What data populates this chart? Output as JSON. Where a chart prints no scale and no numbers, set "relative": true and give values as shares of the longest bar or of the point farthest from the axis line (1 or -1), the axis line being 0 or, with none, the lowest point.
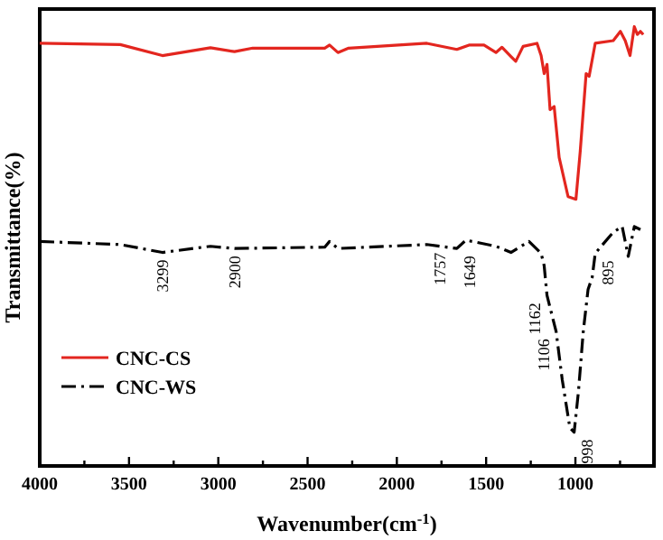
{
  "chart_data": {
    "type": "line",
    "relative": true,
    "xlabel": "Wavenumber(cm$^{-1}$)",
    "ylabel": "Transmittance(%)",
    "xlim": [
      4000,
      560
    ],
    "xticks": [
      4000,
      {
        "value": 3750,
        "label": null
      },
      3500,
      {
        "value": 3250,
        "label": null
      },
      3000,
      {
        "value": 2750,
        "label": null
      },
      2500,
      {
        "value": 2250,
        "label": null
      },
      2000,
      {
        "value": 1750,
        "label": null
      },
      1500,
      {
        "value": 1250,
        "label": null
      },
      1000,
      {
        "value": 750,
        "label": null
      }
    ],
    "legend": "bottom left",
    "grid": false,
    "series": [
      {
        "name": "CNC-CS",
        "color": "#e3261f",
        "line_style": "solid",
        "x": [
          4000,
          3549,
          3313,
          3044,
          2909,
          2807,
          2404,
          2377,
          2330,
          2270,
          1832,
          1664,
          1596,
          1512,
          1445,
          1411,
          1361,
          1334,
          1293,
          1215,
          1192,
          1175,
          1159,
          1142,
          1119,
          1091,
          1041,
          997,
          973,
          940,
          923,
          889,
          788,
          748,
          721,
          694,
          670,
          653,
          636,
          620
        ],
        "values": [
          0.962,
          0.959,
          0.934,
          0.952,
          0.943,
          0.951,
          0.951,
          0.958,
          0.941,
          0.951,
          0.962,
          0.948,
          0.958,
          0.958,
          0.941,
          0.953,
          0.932,
          0.921,
          0.955,
          0.962,
          0.934,
          0.893,
          0.914,
          0.811,
          0.818,
          0.702,
          0.613,
          0.607,
          0.716,
          0.893,
          0.887,
          0.962,
          0.968,
          0.989,
          0.968,
          0.934,
          1.0,
          0.982,
          0.989,
          0.982
        ]
      },
      {
        "name": "CNC-WS",
        "color": "#000000",
        "line_style": "dashdot",
        "x": [
          4000,
          3549,
          3313,
          3044,
          2909,
          2404,
          2377,
          2330,
          1832,
          1664,
          1613,
          1445,
          1361,
          1260,
          1192,
          1175,
          1159,
          1108,
          1074,
          1031,
          1007,
          983,
          956,
          929,
          906,
          889,
          788,
          738,
          704,
          670,
          636
        ],
        "values": [
          0.511,
          0.504,
          0.486,
          0.5,
          0.495,
          0.498,
          0.511,
          0.495,
          0.504,
          0.495,
          0.514,
          0.5,
          0.486,
          0.511,
          0.484,
          0.456,
          0.388,
          0.306,
          0.197,
          0.087,
          0.077,
          0.169,
          0.306,
          0.402,
          0.429,
          0.484,
          0.532,
          0.545,
          0.477,
          0.545,
          0.538
        ]
      }
    ],
    "annotations": [
      {
        "text": "3299",
        "x": 3313,
        "y": 0.486
      },
      {
        "text": "2900",
        "x": 2909,
        "y": 0.495
      },
      {
        "text": "1757",
        "x": 1757,
        "y": 0.502
      },
      {
        "text": "1649",
        "x": 1664,
        "y": 0.495
      },
      {
        "text": "1162",
        "x": 1159,
        "y": 0.388
      },
      {
        "text": "1106",
        "x": 1108,
        "y": 0.306
      },
      {
        "text": "998",
        "x": 1007,
        "y": 0.077
      },
      {
        "text": "895",
        "x": 889,
        "y": 0.484
      }
    ]
  }
}
